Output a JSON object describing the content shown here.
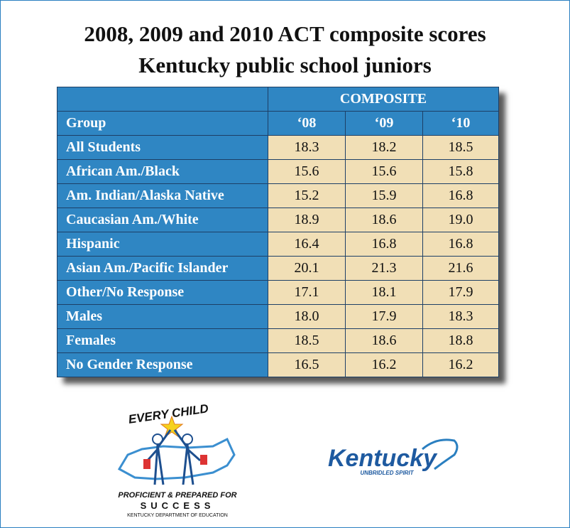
{
  "header": {
    "title": "2008, 2009 and 2010 ACT composite scores",
    "subtitle": "Kentucky public school juniors"
  },
  "table": {
    "group_header": "COMPOSITE",
    "columns": [
      "Group",
      "‘08",
      "‘09",
      "‘10"
    ],
    "rows": [
      [
        "All Students",
        "18.3",
        "18.2",
        "18.5"
      ],
      [
        "African Am./Black",
        "15.6",
        "15.6",
        "15.8"
      ],
      [
        "Am. Indian/Alaska Native",
        "15.2",
        "15.9",
        "16.8"
      ],
      [
        "Caucasian Am./White",
        "18.9",
        "18.6",
        "19.0"
      ],
      [
        "Hispanic",
        "16.4",
        "16.8",
        "16.8"
      ],
      [
        "Asian Am./Pacific Islander",
        "20.1",
        "21.3",
        "21.6"
      ],
      [
        "Other/No Response",
        "17.1",
        "18.1",
        "17.9"
      ],
      [
        "Males",
        "18.0",
        "17.9",
        "18.3"
      ],
      [
        "Females",
        "18.5",
        "18.6",
        "18.8"
      ],
      [
        "No Gender Response",
        "16.5",
        "16.2",
        "16.2"
      ]
    ]
  },
  "logos": {
    "every_child": "EVERY CHILD",
    "proficient": "PROFICIENT & PREPARED FOR",
    "success": "SUCCESS",
    "department": "KENTUCKY DEPARTMENT OF EDUCATION",
    "kentucky": "Kentucky",
    "spirit": "UNBRIDLED SPIRIT"
  }
}
